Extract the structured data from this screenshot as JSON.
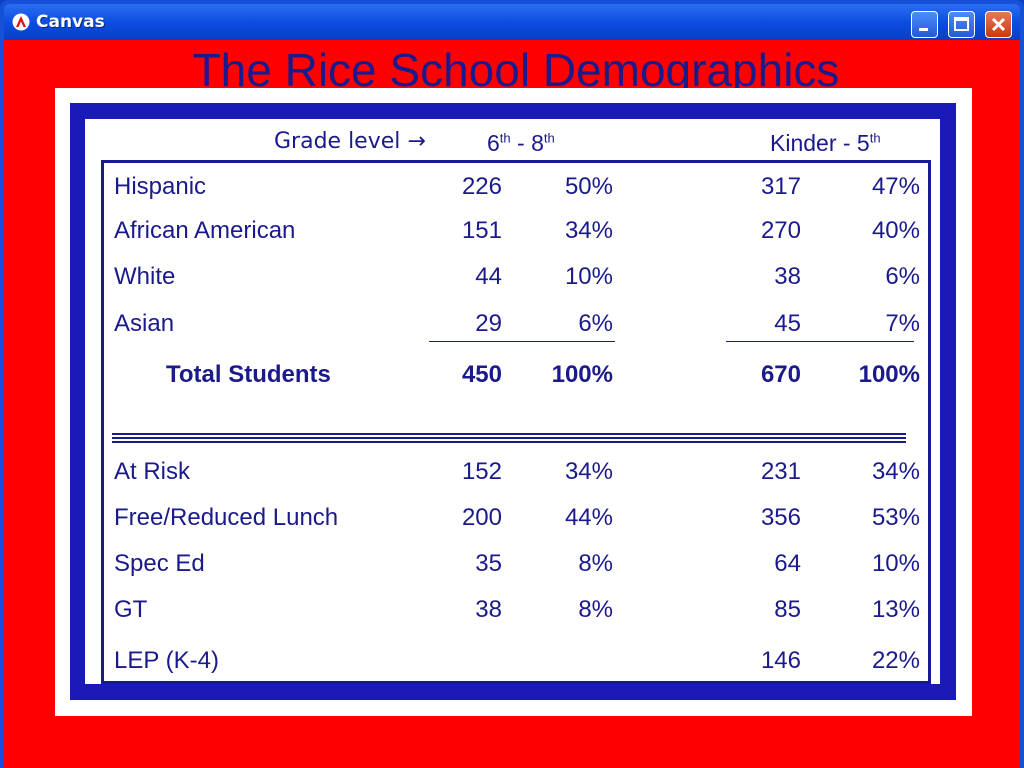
{
  "window": {
    "title": "Canvas"
  },
  "slide": {
    "title": "The Rice School Demographics"
  },
  "table_header": {
    "grade_label": "Grade level",
    "arrow": "→",
    "group1_a": "6",
    "group1_a_sup": "th",
    "group1_sep": " - 8",
    "group1_b_sup": "th",
    "group2_a": "Kinder - 5",
    "group2_a_sup": "th"
  },
  "rows": [
    {
      "label": "Hispanic",
      "c1": "226",
      "c2": "50%",
      "c3": "317",
      "c4": "47%"
    },
    {
      "label": "African American",
      "c1": "151",
      "c2": "34%",
      "c3": "270",
      "c4": "40%"
    },
    {
      "label": "White",
      "c1": "44",
      "c2": "10%",
      "c3": "38",
      "c4": "6%"
    },
    {
      "label": "Asian",
      "c1": "29",
      "c2": "6%",
      "c3": "45",
      "c4": "7%"
    },
    {
      "label": "Total Students",
      "c1": "450",
      "c2": "100%",
      "c3": "670",
      "c4": "100%"
    },
    {
      "label": "At Risk",
      "c1": "152",
      "c2": "34%",
      "c3": "231",
      "c4": "34%"
    },
    {
      "label": "Free/Reduced Lunch",
      "c1": "200",
      "c2": "44%",
      "c3": "356",
      "c4": "53%"
    },
    {
      "label": "Spec Ed",
      "c1": "35",
      "c2": "8%",
      "c3": "64",
      "c4": "10%"
    },
    {
      "label": "GT",
      "c1": "38",
      "c2": "8%",
      "c3": "85",
      "c4": "13%"
    },
    {
      "label": "LEP (K-4)",
      "c1": "",
      "c2": "",
      "c3": "146",
      "c4": "22%"
    }
  ],
  "colors": {
    "title_text": "#1a1a8c",
    "background": "#ff0000",
    "frame_blue": "#1a1ab8",
    "titlebar_blue": "#0b4be0"
  }
}
